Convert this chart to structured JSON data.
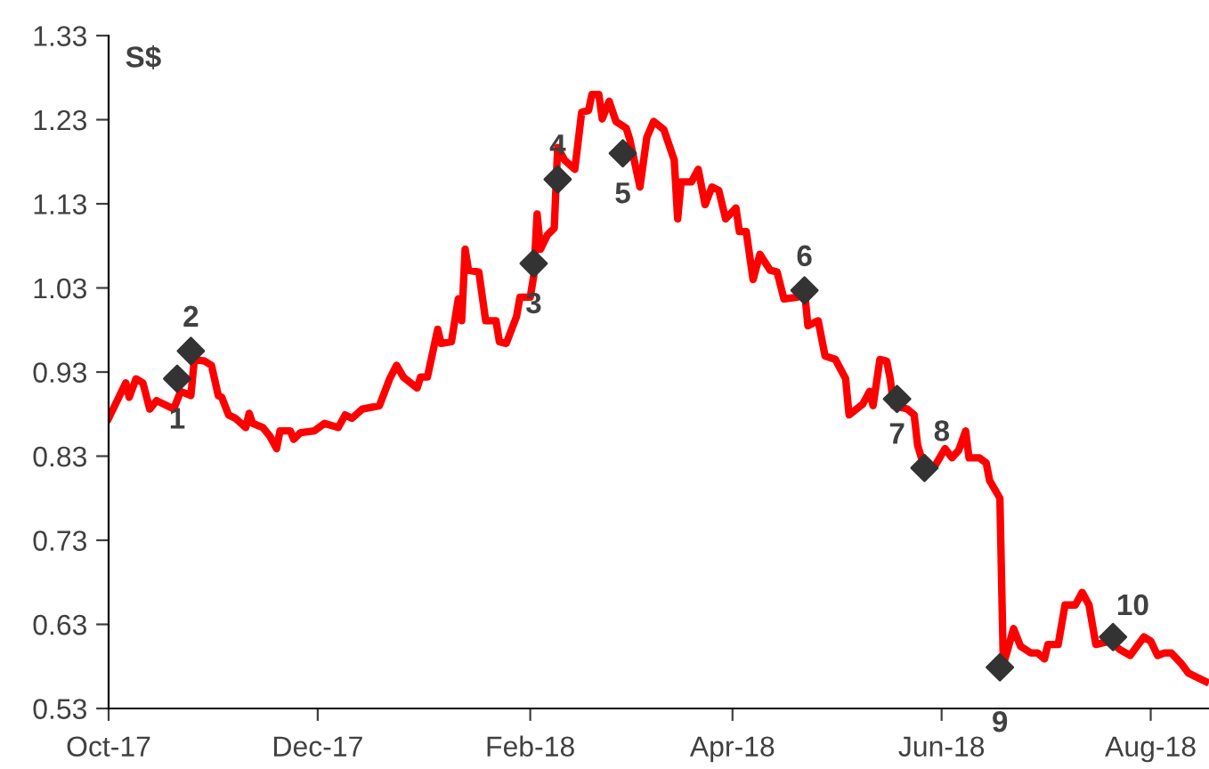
{
  "chart_data": {
    "type": "line",
    "ylabel": "S$",
    "xlim": [
      "2017-10-01",
      "2018-08-18"
    ],
    "xticks": [
      {
        "value": "2017-10-01",
        "label": "Oct-17"
      },
      {
        "value": "2017-12-01",
        "label": "Dec-17"
      },
      {
        "value": "2018-02-01",
        "label": "Feb-18"
      },
      {
        "value": "2018-04-01",
        "label": "Apr-18"
      },
      {
        "value": "2018-06-01",
        "label": "Jun-18"
      },
      {
        "value": "2018-08-01",
        "label": "Aug-18"
      }
    ],
    "ylim": [
      0.53,
      1.33
    ],
    "yticks": [
      0.53,
      0.63,
      0.73,
      0.83,
      0.93,
      1.03,
      1.13,
      1.23,
      1.33
    ],
    "grid": false,
    "legend": false,
    "series": [
      {
        "color": "#ff0000",
        "marker": "none",
        "line_style": "solid",
        "x": [
          "2017-10-01",
          "2017-10-06",
          "2017-10-07",
          "2017-10-09",
          "2017-10-11",
          "2017-10-13",
          "2017-10-15",
          "2017-10-20",
          "2017-10-22",
          "2017-10-25",
          "2017-10-26",
          "2017-10-29",
          "2017-10-31",
          "2017-11-02",
          "2017-11-03",
          "2017-11-05",
          "2017-11-07",
          "2017-11-10",
          "2017-11-11",
          "2017-11-12",
          "2017-11-15",
          "2017-11-17",
          "2017-11-19",
          "2017-11-20",
          "2017-11-23",
          "2017-11-24",
          "2017-11-26",
          "2017-11-30",
          "2017-12-03",
          "2017-12-07",
          "2017-12-09",
          "2017-12-11",
          "2017-12-14",
          "2017-12-19",
          "2017-12-22",
          "2017-12-24",
          "2017-12-26",
          "2017-12-30",
          "2017-12-31",
          "2018-01-02",
          "2018-01-05",
          "2018-01-06",
          "2018-01-09",
          "2018-01-11",
          "2018-01-12",
          "2018-01-13",
          "2018-01-14",
          "2018-01-17",
          "2018-01-19",
          "2018-01-22",
          "2018-01-23",
          "2018-01-25",
          "2018-01-28",
          "2018-01-29",
          "2018-02-01",
          "2018-02-02",
          "2018-02-03",
          "2018-02-04",
          "2018-02-06",
          "2018-02-08",
          "2018-02-09",
          "2018-02-11",
          "2018-02-14",
          "2018-02-16",
          "2018-02-18",
          "2018-02-19",
          "2018-02-21",
          "2018-02-22",
          "2018-02-24",
          "2018-02-26",
          "2018-03-01",
          "2018-03-02",
          "2018-03-05",
          "2018-03-07",
          "2018-03-09",
          "2018-03-12",
          "2018-03-15",
          "2018-03-16",
          "2018-03-17",
          "2018-03-20",
          "2018-03-22",
          "2018-03-24",
          "2018-03-26",
          "2018-03-28",
          "2018-03-30",
          "2018-04-02",
          "2018-04-03",
          "2018-04-05",
          "2018-04-07",
          "2018-04-09",
          "2018-04-12",
          "2018-04-14",
          "2018-04-16",
          "2018-04-20",
          "2018-04-22",
          "2018-04-23",
          "2018-04-26",
          "2018-04-28",
          "2018-05-01",
          "2018-05-04",
          "2018-05-05",
          "2018-05-09",
          "2018-05-11",
          "2018-05-12",
          "2018-05-14",
          "2018-05-16",
          "2018-05-17",
          "2018-05-18",
          "2018-05-22",
          "2018-05-24",
          "2018-05-25",
          "2018-05-27",
          "2018-05-30",
          "2018-06-02",
          "2018-06-04",
          "2018-06-06",
          "2018-06-08",
          "2018-06-09",
          "2018-06-12",
          "2018-06-14",
          "2018-06-15",
          "2018-06-16",
          "2018-06-18",
          "2018-06-19",
          "2018-06-20",
          "2018-06-22",
          "2018-06-24",
          "2018-06-27",
          "2018-06-29",
          "2018-07-01",
          "2018-07-02",
          "2018-07-05",
          "2018-07-07",
          "2018-07-10",
          "2018-07-12",
          "2018-07-14",
          "2018-07-16",
          "2018-07-20",
          "2018-07-23",
          "2018-07-26",
          "2018-07-28",
          "2018-07-30",
          "2018-08-01",
          "2018-08-03",
          "2018-08-05",
          "2018-08-07",
          "2018-08-10",
          "2018-08-12",
          "2018-08-17"
        ],
        "values": [
          0.875,
          0.917,
          0.9,
          0.922,
          0.917,
          0.886,
          0.896,
          0.886,
          0.907,
          0.902,
          0.945,
          0.943,
          0.938,
          0.902,
          0.9,
          0.879,
          0.875,
          0.864,
          0.881,
          0.869,
          0.864,
          0.854,
          0.839,
          0.86,
          0.86,
          0.85,
          0.858,
          0.86,
          0.869,
          0.864,
          0.879,
          0.875,
          0.886,
          0.89,
          0.922,
          0.938,
          0.924,
          0.911,
          0.924,
          0.924,
          0.981,
          0.964,
          0.966,
          1.017,
          0.991,
          1.076,
          1.051,
          1.049,
          0.991,
          0.991,
          0.966,
          0.964,
          0.996,
          1.019,
          1.019,
          1.044,
          1.118,
          1.076,
          1.093,
          1.101,
          1.197,
          1.182,
          1.171,
          1.239,
          1.241,
          1.26,
          1.26,
          1.231,
          1.252,
          1.228,
          1.22,
          1.207,
          1.15,
          1.209,
          1.228,
          1.218,
          1.182,
          1.112,
          1.156,
          1.156,
          1.171,
          1.129,
          1.15,
          1.146,
          1.112,
          1.125,
          1.097,
          1.097,
          1.04,
          1.07,
          1.051,
          1.049,
          1.017,
          1.019,
          1.027,
          0.985,
          0.991,
          0.949,
          0.945,
          0.922,
          0.879,
          0.892,
          0.907,
          0.89,
          0.945,
          0.943,
          0.922,
          0.89,
          0.886,
          0.879,
          0.843,
          0.816,
          0.818,
          0.839,
          0.828,
          0.837,
          0.86,
          0.828,
          0.828,
          0.822,
          0.801,
          0.794,
          0.78,
          0.583,
          0.596,
          0.625,
          0.604,
          0.596,
          0.596,
          0.589,
          0.606,
          0.606,
          0.653,
          0.653,
          0.668,
          0.653,
          0.606,
          0.61,
          0.6,
          0.593,
          0.604,
          0.615,
          0.61,
          0.593,
          0.596,
          0.596,
          0.583,
          0.572,
          0.562
        ]
      },
      {
        "type": "scatter",
        "color": "#333333",
        "marker": "diamond",
        "x": [
          "2017-10-21",
          "2017-10-25",
          "2018-02-02",
          "2018-02-09",
          "2018-02-28",
          "2018-04-22",
          "2018-05-19",
          "2018-05-27",
          "2018-06-18",
          "2018-07-21"
        ],
        "values": [
          0.922,
          0.955,
          1.059,
          1.159,
          1.19,
          1.027,
          0.898,
          0.816,
          0.579,
          0.615
        ]
      }
    ],
    "annotations": [
      {
        "text": "1",
        "x": "2017-10-21",
        "y": 0.922
      },
      {
        "text": "2",
        "x": "2017-10-25",
        "y": 0.955
      },
      {
        "text": "3",
        "x": "2018-02-02",
        "y": 1.059
      },
      {
        "text": "4",
        "x": "2018-02-09",
        "y": 1.159
      },
      {
        "text": "5",
        "x": "2018-02-28",
        "y": 1.19
      },
      {
        "text": "6",
        "x": "2018-04-22",
        "y": 1.027
      },
      {
        "text": "7",
        "x": "2018-05-19",
        "y": 0.898
      },
      {
        "text": "8",
        "x": "2018-05-27",
        "y": 0.816
      },
      {
        "text": "9",
        "x": "2018-06-18",
        "y": 0.579
      },
      {
        "text": "10",
        "x": "2018-07-21",
        "y": 0.615
      }
    ]
  }
}
